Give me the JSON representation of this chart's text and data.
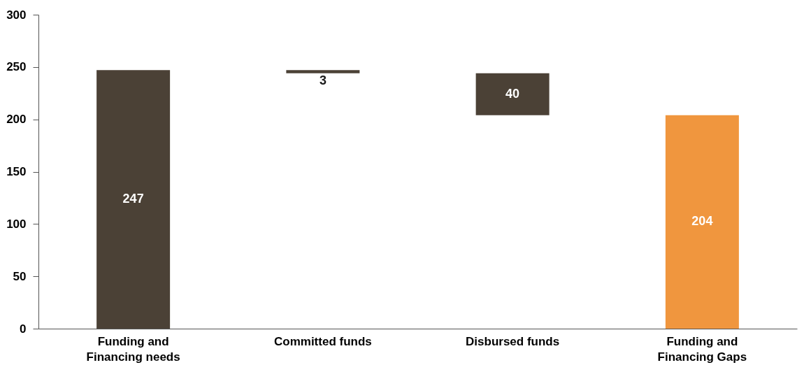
{
  "chart_data": {
    "type": "bar",
    "categories": [
      "Funding and Financing needs",
      "Committed funds",
      "Disbursed funds",
      "Funding and Financing Gaps"
    ],
    "values": [
      247,
      3,
      40,
      204
    ],
    "base": [
      0,
      244,
      204,
      0
    ],
    "colors": [
      "#4b4136",
      "#4b4136",
      "#4b4136",
      "#f0963e"
    ],
    "ylim": [
      0,
      300
    ],
    "yticks": [
      0,
      50,
      100,
      150,
      200,
      250,
      300
    ],
    "data_labels": true,
    "grid": false
  }
}
